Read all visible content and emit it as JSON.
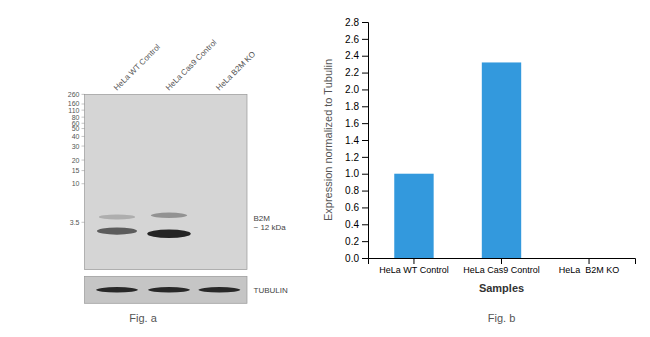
{
  "chart_data": {
    "type": "bar",
    "categories": [
      "HeLa WT Control",
      "HeLa Cas9 Control",
      "HeLa  B2M KO"
    ],
    "values": [
      1.0,
      2.32,
      0.0
    ],
    "color": "#3399dd",
    "xlabel": "Samples",
    "ylabel": "Expression normalized to Tubulin",
    "ylim": [
      0,
      2.8
    ],
    "yticks": [
      {
        "value": 0,
        "label": "0.0"
      },
      0.2,
      0.4,
      0.6,
      0.8,
      {
        "value": 1,
        "label": "1.0"
      },
      1.2,
      1.4,
      1.6,
      1.8,
      {
        "value": 2,
        "label": "2.0"
      },
      2.2,
      2.4,
      2.6,
      2.8
    ],
    "annotations": [
      "Fig. a",
      "Fig. b",
      "B2M\n~ 12 kDa",
      "TUBULIN",
      "HeLa WT Control",
      "HeLa Cas9 Control",
      "HeLa B2M KO",
      "260",
      "160",
      "110",
      "80",
      "60",
      "50",
      "40",
      "30",
      "20",
      "15",
      "10",
      "3.5"
    ]
  }
}
